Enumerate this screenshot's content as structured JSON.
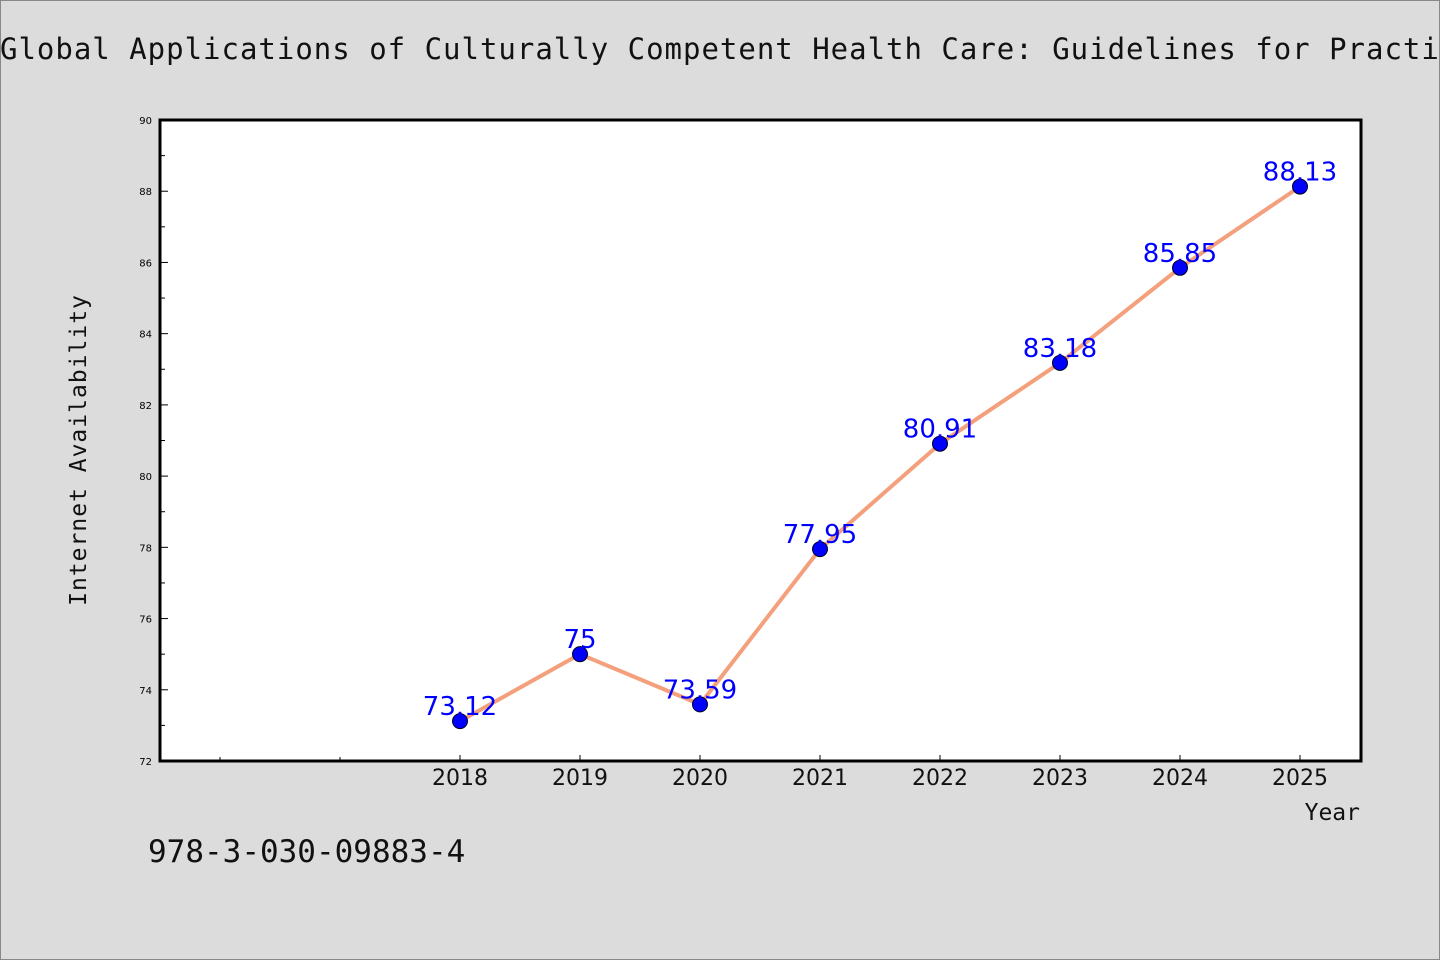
{
  "chart_data": {
    "type": "line",
    "title": "Global Applications of Culturally Competent Health Care: Guidelines for Practice",
    "xlabel": "Year",
    "ylabel": "Internet Availability",
    "categories": [
      "2018",
      "2019",
      "2020",
      "2021",
      "2022",
      "2023",
      "2024",
      "2025"
    ],
    "series": [
      {
        "values": [
          73.12,
          75,
          73.59,
          77.95,
          80.91,
          83.18,
          85.85,
          88.13
        ],
        "labels": [
          "73.12",
          "75",
          "73.59",
          "77.95",
          "80.91",
          "83.18",
          "85.85",
          "88.13"
        ]
      }
    ],
    "ylim": [
      72,
      90
    ],
    "yticks": [
      72,
      74,
      76,
      78,
      80,
      82,
      84,
      86,
      88,
      90
    ],
    "grid": false,
    "legend": "none",
    "colors": {
      "line": "#f4a07c",
      "marker": "#0000ff",
      "label": "#0000ff",
      "background": "#dcdcdc",
      "plot_background": "#ffffff"
    }
  },
  "footer": {
    "isbn": "978-3-030-09883-4"
  }
}
